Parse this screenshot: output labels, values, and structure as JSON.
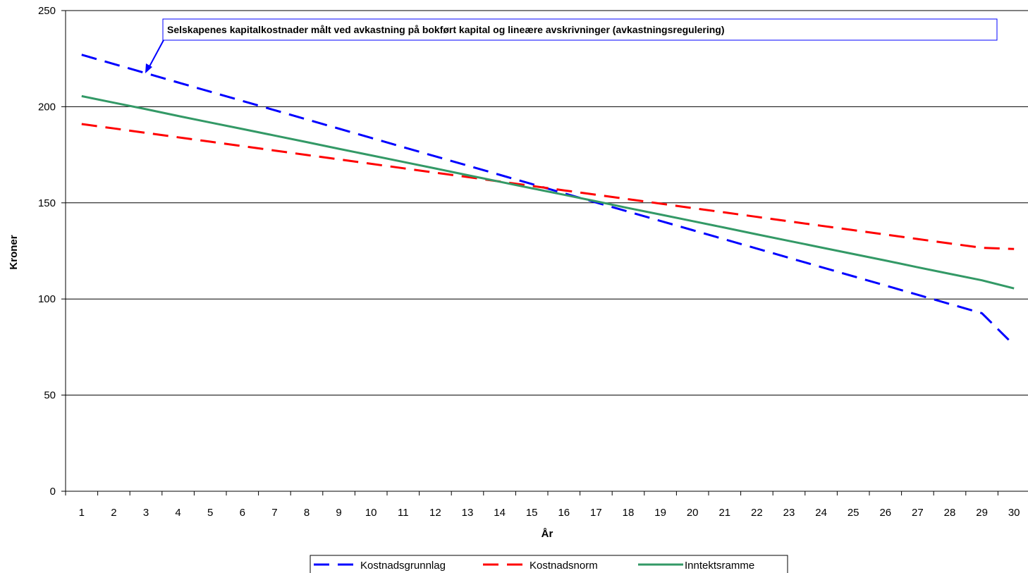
{
  "chart_data": {
    "type": "line",
    "title": "",
    "xlabel": "År",
    "ylabel": "Kroner",
    "x": [
      1,
      2,
      3,
      4,
      5,
      6,
      7,
      8,
      9,
      10,
      11,
      12,
      13,
      14,
      15,
      16,
      17,
      18,
      19,
      20,
      21,
      22,
      23,
      24,
      25,
      26,
      27,
      28,
      29,
      30
    ],
    "xlim": [
      1,
      30
    ],
    "ylim": [
      0,
      250
    ],
    "yticks": [
      0,
      50,
      100,
      150,
      200,
      250
    ],
    "grid": "horizontal",
    "legend_position": "bottom",
    "annotation": "Selskapenes kapitalkostnader målt ved avkastning på bokført kapital og lineære avskrivninger (avkastningsregulering)",
    "series": [
      {
        "name": "Kostnadsgrunnlag",
        "color": "#0000ff",
        "style": "dashed",
        "values": [
          227,
          222.2,
          217.4,
          212.6,
          207.8,
          203.0,
          198.2,
          193.4,
          188.6,
          183.8,
          179.0,
          174.2,
          169.4,
          164.6,
          159.8,
          155.0,
          150.2,
          145.4,
          140.6,
          135.8,
          131.0,
          126.2,
          121.4,
          116.6,
          111.8,
          107.0,
          102.2,
          97.4,
          92.6,
          76
        ]
      },
      {
        "name": "Kostnadsnorm",
        "color": "#ff0000",
        "style": "dashed",
        "values": [
          191,
          188.7,
          186.4,
          184.1,
          181.8,
          179.5,
          177.2,
          174.9,
          172.6,
          170.3,
          168.0,
          165.7,
          163.4,
          161.1,
          158.8,
          156.5,
          154.2,
          151.9,
          149.6,
          147.3,
          145.0,
          142.7,
          140.4,
          138.1,
          135.8,
          133.5,
          131.2,
          128.9,
          126.6,
          126
        ]
      },
      {
        "name": "Inntektsramme",
        "color": "#339966",
        "style": "solid",
        "values": [
          205.5,
          202.1,
          198.7,
          195.2,
          191.8,
          188.4,
          185.0,
          181.6,
          178.1,
          174.7,
          171.3,
          167.9,
          164.4,
          161.0,
          157.6,
          154.2,
          150.8,
          147.3,
          143.9,
          140.5,
          137.1,
          133.6,
          130.2,
          126.8,
          123.4,
          120.0,
          116.5,
          113.1,
          109.7,
          105.5
        ]
      }
    ]
  }
}
